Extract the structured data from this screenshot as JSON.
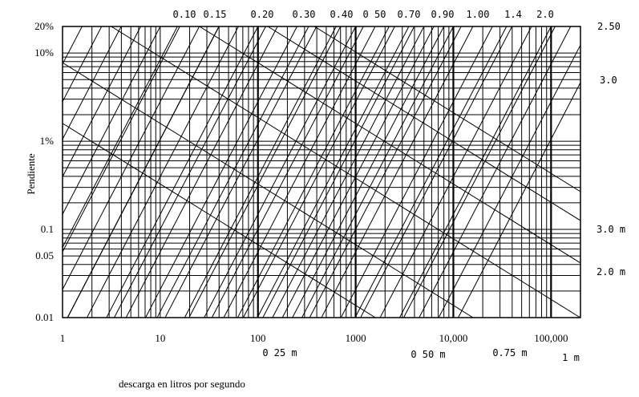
{
  "chart_data": {
    "type": "line",
    "xscale": "log",
    "yscale": "log",
    "xlabel": "descarga en litros por segundo",
    "ylabel": "Pendiente",
    "xlim": [
      1,
      200000
    ],
    "ylim": [
      0.01,
      20
    ],
    "x_tick_labels": [
      {
        "value": 1,
        "label": "1"
      },
      {
        "value": 10,
        "label": "10"
      },
      {
        "value": 100,
        "label": "100"
      },
      {
        "value": 1000,
        "label": "1000"
      },
      {
        "value": 10000,
        "label": "10,000"
      },
      {
        "value": 100000,
        "label": "100,000"
      }
    ],
    "y_tick_labels": [
      {
        "value": 20,
        "label": "20%"
      },
      {
        "value": 10,
        "label": "10%"
      },
      {
        "value": 1,
        "label": "1%"
      },
      {
        "value": 0.1,
        "label": "0.1"
      },
      {
        "value": 0.05,
        "label": "0.05"
      },
      {
        "value": 0.01,
        "label": "0.01"
      }
    ],
    "velocity_labels": [
      "0.10",
      "0.15",
      "0.20",
      "0.30",
      "0.40",
      "0 50",
      "0.70",
      "0.90",
      "1.00",
      "1.4",
      "2.0",
      "2.50",
      "3.0"
    ],
    "depth_labels_bottom": [
      "0 25 m",
      "0 50 m",
      "0.75 m",
      "1 m"
    ],
    "depth_labels_right": [
      "3.0 m",
      "2.0 m"
    ],
    "velocity_series_x_at_top": [
      15,
      40,
      120,
      330,
      700,
      1200,
      2200,
      3500,
      5000,
      8000,
      12000,
      35000,
      110000
    ],
    "depth_series_q_at_slope_1pct": [
      4,
      40,
      500,
      4000,
      20000,
      60000
    ],
    "grid": true
  }
}
